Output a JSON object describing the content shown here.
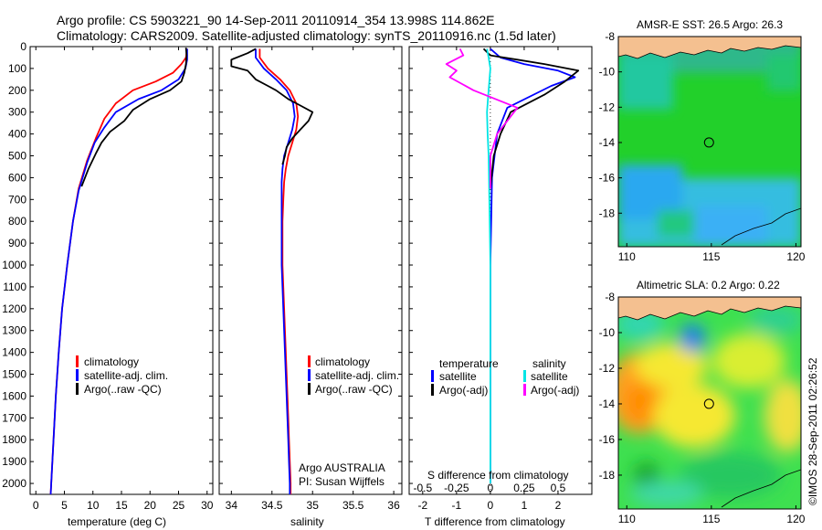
{
  "title_line1": "Argo profile: CS 5903221_90 14-Sep-2011 20110914_354 13.998S 114.862E",
  "title_line2": "Climatology: CARS2009. Satellite-adjusted climatology: synTS_20110916.nc (1.5d later)",
  "footer_credit": "©IMOS 28-Sep-2011 02:26:52",
  "colors": {
    "climatology": "#ff0000",
    "satellite": "#0000ff",
    "argo": "#000000",
    "salinity_satellite": "#00e5e5",
    "salinity_argo": "#ff00ff"
  },
  "chart_data": [
    {
      "type": "line",
      "id": "temperature",
      "xlabel": "temperature (deg C)",
      "xlim": [
        -1,
        31
      ],
      "ylim": [
        2050,
        0
      ],
      "xticks": [
        0,
        5,
        10,
        15,
        20,
        25,
        30
      ],
      "yticks": [
        0,
        100,
        200,
        300,
        400,
        500,
        600,
        700,
        800,
        900,
        1000,
        1100,
        1200,
        1300,
        1400,
        1500,
        1600,
        1700,
        1800,
        1900,
        2000
      ],
      "legend": [
        "climatology",
        "satellite-adj. clim.",
        "Argo(..raw -QC)"
      ],
      "series": [
        {
          "name": "climatology",
          "color": "#ff0000",
          "points": [
            [
              26.5,
              10
            ],
            [
              26.3,
              50
            ],
            [
              25.5,
              80
            ],
            [
              24.0,
              120
            ],
            [
              21.0,
              160
            ],
            [
              17.0,
              200
            ],
            [
              14.0,
              260
            ],
            [
              12.0,
              330
            ],
            [
              10.5,
              420
            ],
            [
              9.0,
              520
            ],
            [
              7.5,
              650
            ],
            [
              6.5,
              800
            ],
            [
              5.5,
              1000
            ],
            [
              4.6,
              1200
            ],
            [
              4.0,
              1400
            ],
            [
              3.5,
              1600
            ],
            [
              3.1,
              1800
            ],
            [
              2.7,
              2000
            ],
            [
              2.6,
              2050
            ]
          ]
        },
        {
          "name": "satellite-adj. clim.",
          "color": "#0000ff",
          "points": [
            [
              26.5,
              10
            ],
            [
              26.5,
              60
            ],
            [
              26.2,
              100
            ],
            [
              25.0,
              150
            ],
            [
              22.0,
              200
            ],
            [
              18.0,
              240
            ],
            [
              14.0,
              300
            ],
            [
              12.0,
              370
            ],
            [
              10.3,
              440
            ],
            [
              9.0,
              530
            ],
            [
              7.5,
              660
            ],
            [
              6.5,
              800
            ],
            [
              5.5,
              1000
            ],
            [
              4.6,
              1200
            ],
            [
              4.0,
              1400
            ],
            [
              3.5,
              1600
            ],
            [
              3.1,
              1800
            ],
            [
              2.7,
              2000
            ],
            [
              2.6,
              2050
            ]
          ]
        },
        {
          "name": "Argo(..raw -QC)",
          "color": "#000000",
          "points": [
            [
              26.3,
              5
            ],
            [
              26.4,
              40
            ],
            [
              26.3,
              80
            ],
            [
              26.0,
              120
            ],
            [
              25.5,
              160
            ],
            [
              23.5,
              200
            ],
            [
              20.0,
              240
            ],
            [
              17.0,
              290
            ],
            [
              15.5,
              340
            ],
            [
              13.0,
              390
            ],
            [
              11.5,
              440
            ],
            [
              10.5,
              490
            ],
            [
              9.2,
              560
            ],
            [
              8.0,
              640
            ]
          ]
        }
      ]
    },
    {
      "type": "line",
      "id": "salinity",
      "xlabel": "salinity",
      "xlim": [
        33.85,
        36.1
      ],
      "ylim": [
        2050,
        0
      ],
      "xticks": [
        34,
        34.5,
        35,
        35.5,
        36
      ],
      "legend": [
        "climatology",
        "satellite-adj. clim.",
        "Argo(..raw -QC)"
      ],
      "annotation_line1": "Argo AUSTRALIA",
      "annotation_line2": "PI: Susan Wijffels",
      "series": [
        {
          "name": "climatology",
          "color": "#ff0000",
          "points": [
            [
              34.35,
              10
            ],
            [
              34.35,
              50
            ],
            [
              34.45,
              100
            ],
            [
              34.6,
              150
            ],
            [
              34.72,
              200
            ],
            [
              34.8,
              260
            ],
            [
              34.82,
              320
            ],
            [
              34.8,
              380
            ],
            [
              34.75,
              440
            ],
            [
              34.7,
              500
            ],
            [
              34.67,
              560
            ],
            [
              34.65,
              620
            ],
            [
              34.64,
              700
            ],
            [
              34.63,
              800
            ],
            [
              34.63,
              900
            ],
            [
              34.63,
              1000
            ],
            [
              34.64,
              1100
            ],
            [
              34.65,
              1200
            ],
            [
              34.66,
              1300
            ],
            [
              34.67,
              1400
            ],
            [
              34.68,
              1500
            ],
            [
              34.69,
              1600
            ],
            [
              34.7,
              1700
            ],
            [
              34.71,
              1800
            ],
            [
              34.72,
              1900
            ],
            [
              34.73,
              2000
            ],
            [
              34.73,
              2050
            ]
          ]
        },
        {
          "name": "satellite-adj. clim.",
          "color": "#0000ff",
          "points": [
            [
              34.3,
              10
            ],
            [
              34.3,
              50
            ],
            [
              34.4,
              100
            ],
            [
              34.55,
              150
            ],
            [
              34.68,
              200
            ],
            [
              34.76,
              260
            ],
            [
              34.78,
              320
            ],
            [
              34.75,
              380
            ],
            [
              34.7,
              440
            ],
            [
              34.65,
              500
            ],
            [
              34.63,
              560
            ],
            [
              34.62,
              620
            ],
            [
              34.62,
              700
            ],
            [
              34.62,
              800
            ],
            [
              34.62,
              900
            ],
            [
              34.62,
              1000
            ],
            [
              34.63,
              1100
            ],
            [
              34.64,
              1200
            ],
            [
              34.65,
              1300
            ],
            [
              34.66,
              1400
            ],
            [
              34.67,
              1500
            ],
            [
              34.68,
              1600
            ],
            [
              34.69,
              1700
            ],
            [
              34.7,
              1800
            ],
            [
              34.71,
              1900
            ],
            [
              34.72,
              2000
            ],
            [
              34.72,
              2050
            ]
          ]
        },
        {
          "name": "Argo(..raw -QC)",
          "color": "#000000",
          "points": [
            [
              34.3,
              10
            ],
            [
              34.2,
              30
            ],
            [
              34.0,
              60
            ],
            [
              34.0,
              90
            ],
            [
              34.2,
              110
            ],
            [
              34.3,
              150
            ],
            [
              34.45,
              180
            ],
            [
              34.55,
              200
            ],
            [
              34.7,
              240
            ],
            [
              34.85,
              270
            ],
            [
              35.0,
              300
            ],
            [
              34.95,
              340
            ],
            [
              34.85,
              380
            ],
            [
              34.75,
              420
            ],
            [
              34.68,
              460
            ],
            [
              34.66,
              500
            ],
            [
              34.63,
              540
            ]
          ]
        }
      ]
    },
    {
      "type": "line",
      "id": "difference",
      "xlabel": "T difference from climatology",
      "xlabel_top": "S difference from climatology",
      "xlim": [
        -2.4,
        3.0
      ],
      "ylim": [
        2050,
        0
      ],
      "xticks": [
        -2,
        -1,
        0,
        1,
        2
      ],
      "xticks_top": [
        -0.5,
        -0.25,
        0,
        0.25,
        0.5
      ],
      "legend_temperature_header": "temperature",
      "legend_salinity_header": "salinity",
      "legend_temperature": [
        "satellite",
        "Argo(-adj)"
      ],
      "legend_salinity": [
        "satellite",
        "Argo(-adj)"
      ],
      "series": [
        {
          "name": "satellite",
          "color": "#0000ff",
          "points": [
            [
              0.0,
              10
            ],
            [
              0.3,
              50
            ],
            [
              1.0,
              80
            ],
            [
              2.0,
              110
            ],
            [
              2.5,
              140
            ],
            [
              1.8,
              180
            ],
            [
              0.5,
              280
            ],
            [
              0.2,
              400
            ],
            [
              0.05,
              600
            ],
            [
              0.0,
              1000
            ],
            [
              0.0,
              2000
            ]
          ]
        },
        {
          "name": "Argo(-adj)",
          "color": "#000000",
          "points": [
            [
              -0.2,
              10
            ],
            [
              0.0,
              40
            ],
            [
              0.8,
              60
            ],
            [
              1.6,
              80
            ],
            [
              2.6,
              110
            ],
            [
              2.2,
              160
            ],
            [
              1.6,
              220
            ],
            [
              0.6,
              300
            ],
            [
              0.3,
              400
            ],
            [
              0.1,
              500
            ],
            [
              0.0,
              650
            ]
          ]
        },
        {
          "name": "satellite (salinity)",
          "color": "#00e5e5",
          "points": [
            [
              -0.1,
              10
            ],
            [
              -0.05,
              50
            ],
            [
              0.0,
              100
            ],
            [
              -0.05,
              200
            ],
            [
              -0.1,
              300
            ],
            [
              -0.08,
              400
            ],
            [
              -0.05,
              500
            ],
            [
              -0.03,
              700
            ],
            [
              0.0,
              1000
            ],
            [
              0.0,
              2000
            ]
          ]
        },
        {
          "name": "Argo(-adj) (salinity)",
          "color": "#ff00ff",
          "points": [
            [
              -0.9,
              10
            ],
            [
              -0.8,
              40
            ],
            [
              -1.3,
              80
            ],
            [
              -1.0,
              110
            ],
            [
              -1.2,
              140
            ],
            [
              -0.5,
              200
            ],
            [
              0.8,
              280
            ],
            [
              0.5,
              340
            ],
            [
              0.2,
              400
            ],
            [
              0.0,
              500
            ],
            [
              0.0,
              650
            ]
          ]
        }
      ]
    },
    {
      "type": "heatmap",
      "id": "sst-map",
      "title": "AMSR-E SST: 26.5 Argo: 26.3",
      "xlim": [
        109.5,
        120.3
      ],
      "ylim": [
        -19.9,
        -8
      ],
      "xticks": [
        110,
        115,
        120
      ],
      "yticks": [
        -8,
        -10,
        -12,
        -14,
        -16,
        -18
      ],
      "profile_location": [
        114.862,
        -13.998
      ]
    },
    {
      "type": "heatmap",
      "id": "sla-map",
      "title": "Altimetric SLA: 0.2 Argo: 0.22",
      "xlim": [
        109.5,
        120.3
      ],
      "ylim": [
        -19.9,
        -8
      ],
      "xticks": [
        110,
        115,
        120
      ],
      "yticks": [
        -8,
        -10,
        -12,
        -14,
        -16,
        -18
      ],
      "profile_location": [
        114.862,
        -13.998
      ]
    }
  ]
}
